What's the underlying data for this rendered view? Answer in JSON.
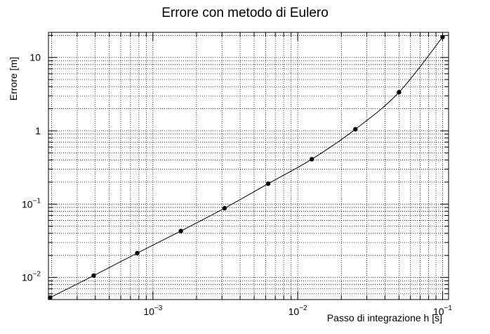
{
  "chart_data": {
    "type": "scatter",
    "title": "Errore con metodo di Eulero",
    "xlabel": "Passo di integrazione h [s]",
    "ylabel": "Errore [m]",
    "xscale": "log",
    "yscale": "log",
    "xlim": [
      0.00019,
      0.11
    ],
    "ylim": [
      0.005,
      22
    ],
    "grid": true,
    "x_ticks": [
      {
        "value": 0.001,
        "base": "10",
        "exp": "−3"
      },
      {
        "value": 0.01,
        "base": "10",
        "exp": "−2"
      },
      {
        "value": 0.1,
        "base": "10",
        "exp": "−1"
      }
    ],
    "y_ticks": [
      {
        "value": 0.01,
        "base": "10",
        "exp": "−2"
      },
      {
        "value": 0.1,
        "base": "10",
        "exp": "−1"
      },
      {
        "value": 1,
        "base": "1",
        "exp": ""
      },
      {
        "value": 10,
        "base": "10",
        "exp": ""
      }
    ],
    "series": [
      {
        "x": [
          0.000195,
          0.00039,
          0.00078,
          0.00156,
          0.003125,
          0.00625,
          0.0125,
          0.025,
          0.05,
          0.1
        ],
        "y": [
          0.0053,
          0.0106,
          0.0215,
          0.043,
          0.088,
          0.19,
          0.41,
          1.05,
          3.35,
          19.0
        ],
        "marker": "circle",
        "line": true,
        "color": "#000000"
      }
    ]
  }
}
